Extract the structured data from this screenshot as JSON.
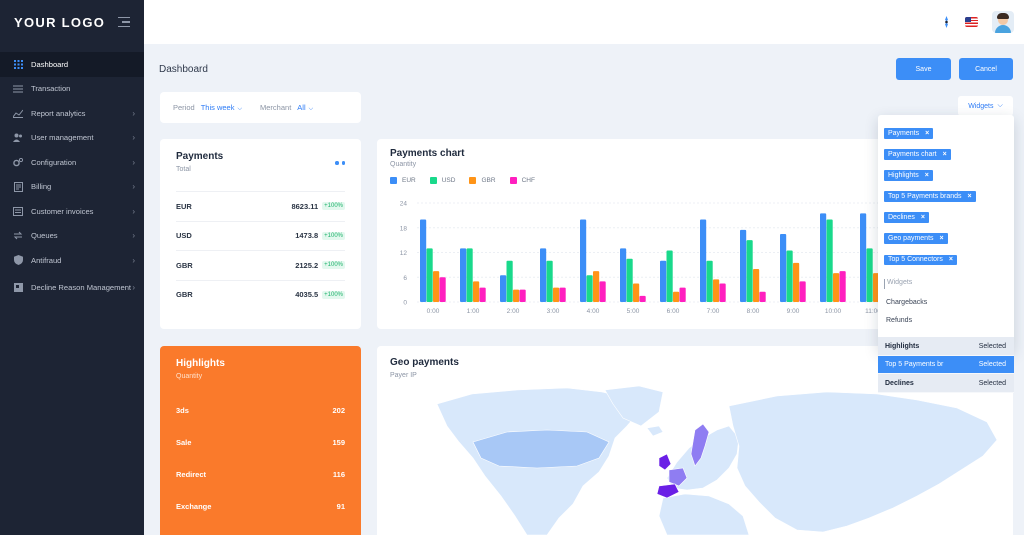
{
  "brand": {
    "logo": "YOUR LOGO",
    "accent": "#3c8ef7",
    "orange": "#fa7a2b",
    "sidebar_bg": "#1d2434"
  },
  "sidebar": {
    "items": [
      {
        "label": "Dashboard",
        "icon": "grid-icon",
        "active": true,
        "chevron": false
      },
      {
        "label": "Transaction",
        "icon": "list-icon",
        "chevron": false
      },
      {
        "label": "Report analytics",
        "icon": "chart-line-icon",
        "chevron": true
      },
      {
        "label": "User management",
        "icon": "users-icon",
        "chevron": true
      },
      {
        "label": "Configuration",
        "icon": "gears-icon",
        "chevron": true
      },
      {
        "label": "Billing",
        "icon": "billing-icon",
        "chevron": true
      },
      {
        "label": "Customer invoices",
        "icon": "invoice-icon",
        "chevron": true
      },
      {
        "label": "Queues",
        "icon": "queues-icon",
        "chevron": true
      },
      {
        "label": "Antifraud",
        "icon": "shield-icon",
        "chevron": true
      },
      {
        "label": "Decline Reason Management",
        "icon": "decline-icon",
        "chevron": true
      }
    ],
    "chevron": "›"
  },
  "page": {
    "title": "Dashboard"
  },
  "actions": {
    "save": "Save",
    "cancel": "Cancel"
  },
  "filters": {
    "period_label": "Period",
    "period_value": "This week",
    "merchant_label": "Merchant",
    "merchant_value": "All",
    "dropdown_glyph": "⌵"
  },
  "payments": {
    "title": "Payments",
    "subtitle": "Total",
    "rows": [
      {
        "currency": "EUR",
        "amount": "8623.11",
        "change": "+100%"
      },
      {
        "currency": "USD",
        "amount": "1473.8",
        "change": "+100%"
      },
      {
        "currency": "GBR",
        "amount": "2125.2",
        "change": "+100%"
      },
      {
        "currency": "GBR",
        "amount": "4035.5",
        "change": "+100%"
      }
    ]
  },
  "chart_data": {
    "type": "bar",
    "title": "Payments chart",
    "subtitle": "Quantity",
    "categories": [
      "0:00",
      "1:00",
      "2:00",
      "3:00",
      "4:00",
      "5:00",
      "6:00",
      "7:00",
      "8:00",
      "9:00",
      "10:00",
      "11:00"
    ],
    "series": [
      {
        "name": "EUR",
        "color": "#3c8ef7",
        "values": [
          20,
          13,
          6.5,
          13,
          20,
          13,
          10,
          20,
          17.5,
          16.5,
          21.5,
          21.5
        ]
      },
      {
        "name": "USD",
        "color": "#19d98b",
        "values": [
          13,
          13,
          10,
          10,
          6.5,
          10.5,
          12.5,
          10,
          15,
          12.5,
          20,
          13
        ]
      },
      {
        "name": "GBR",
        "color": "#ff9417",
        "values": [
          7.5,
          5,
          3,
          3.5,
          7.5,
          4.5,
          2.5,
          5.5,
          8,
          9.5,
          7,
          7
        ]
      },
      {
        "name": "CHF",
        "color": "#ff1fbf",
        "values": [
          6,
          3.5,
          3,
          3.5,
          5,
          1.5,
          3.5,
          4.5,
          2.5,
          5,
          7.5,
          3
        ]
      }
    ],
    "yticks": [
      "0",
      "6",
      "12",
      "18",
      "24"
    ],
    "ylim": [
      0,
      24
    ],
    "grid": true
  },
  "highlights": {
    "title": "Highlights",
    "subtitle": "Quantity",
    "rows": [
      {
        "label": "3ds",
        "value": "202"
      },
      {
        "label": "Sale",
        "value": "159"
      },
      {
        "label": "Redirect",
        "value": "116"
      },
      {
        "label": "Exchange",
        "value": "91"
      }
    ]
  },
  "geo": {
    "title": "Geo payments",
    "subtitle": "Payer IP",
    "land_color": "#d8e8fb",
    "highlight_light": "#a8c8f6",
    "highlight_mid": "#8f7df2",
    "highlight_dark": "#6a1fe6"
  },
  "widgets": {
    "button_label": "Widgets",
    "dropdown_glyph": "⌵",
    "tags": [
      "Payments",
      "Payments chart",
      "Highlights",
      "Top 5 Payments brands",
      "Declines",
      "Geo payments",
      "Top 5 Connectors"
    ],
    "tag_remove": "×",
    "search_placeholder": "Widgets",
    "options": [
      "Chargebacks",
      "Refunds"
    ],
    "selected": [
      {
        "name": "Highlights",
        "status": "Selected"
      },
      {
        "name": "Top 5 Payments br",
        "status": "Selected",
        "highlighted": true
      },
      {
        "name": "Declines",
        "status": "Selected"
      }
    ]
  }
}
